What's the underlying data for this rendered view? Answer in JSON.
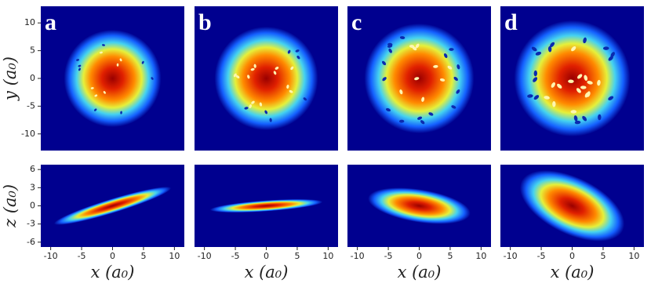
{
  "panels": [
    {
      "label": "a"
    },
    {
      "label": "b"
    },
    {
      "label": "c"
    },
    {
      "label": "d"
    }
  ],
  "top": {
    "ylabel": "y (a₀)",
    "ylim": [
      -13,
      13
    ],
    "yticks": [
      -10,
      -5,
      0,
      5,
      10
    ]
  },
  "bottom": {
    "ylabel": "z (a₀)",
    "ylim": [
      -6.8,
      6.8
    ],
    "yticks": [
      -6,
      -3,
      0,
      3,
      6
    ]
  },
  "x": {
    "label": "x (a₀)",
    "xlim": [
      -11.6,
      11.6
    ],
    "xticks": [
      -10,
      -5,
      0,
      5,
      10
    ]
  }
}
